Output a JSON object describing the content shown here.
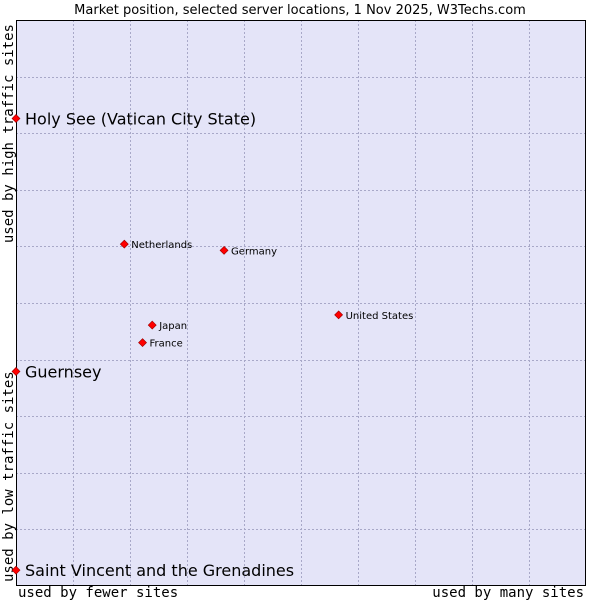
{
  "colors": {
    "plot_background": "#e4e4f8",
    "grid": "#a8a8c8",
    "border": "#000000",
    "marker": "#ff0000",
    "marker_stroke": "#990000"
  },
  "chart_data": {
    "type": "scatter",
    "title": "Market position, selected server locations, 1 Nov 2025, W3Techs.com",
    "xlabel_left": "used by fewer sites",
    "xlabel_right": "used by many sites",
    "ylabel_bottom": "used by low traffic sites",
    "ylabel_top": "used by high traffic sites",
    "xlim": [
      0,
      100
    ],
    "ylim": [
      0,
      100
    ],
    "grid": true,
    "x_divisions": 10,
    "y_divisions": 10,
    "points": [
      {
        "label": "Holy See (Vatican City State)",
        "x": 0,
        "y": 82.6,
        "size": "large"
      },
      {
        "label": "Netherlands",
        "x": 19.0,
        "y": 60.4,
        "size": "small"
      },
      {
        "label": "Germany",
        "x": 36.5,
        "y": 59.3,
        "size": "small"
      },
      {
        "label": "United States",
        "x": 56.6,
        "y": 47.9,
        "size": "small"
      },
      {
        "label": "Japan",
        "x": 23.9,
        "y": 46.1,
        "size": "small"
      },
      {
        "label": "France",
        "x": 22.2,
        "y": 43.0,
        "size": "small"
      },
      {
        "label": "Guernsey",
        "x": 0,
        "y": 37.9,
        "size": "large"
      },
      {
        "label": "Saint Vincent and the Grenadines",
        "x": 0,
        "y": 2.8,
        "size": "large"
      }
    ]
  }
}
